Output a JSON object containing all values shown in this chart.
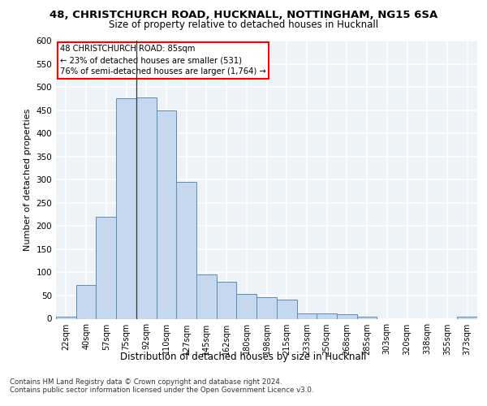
{
  "title_line1": "48, CHRISTCHURCH ROAD, HUCKNALL, NOTTINGHAM, NG15 6SA",
  "title_line2": "Size of property relative to detached houses in Hucknall",
  "xlabel": "Distribution of detached houses by size in Hucknall",
  "ylabel": "Number of detached properties",
  "categories": [
    "22sqm",
    "40sqm",
    "57sqm",
    "75sqm",
    "92sqm",
    "110sqm",
    "127sqm",
    "145sqm",
    "162sqm",
    "180sqm",
    "198sqm",
    "215sqm",
    "233sqm",
    "250sqm",
    "268sqm",
    "285sqm",
    "303sqm",
    "320sqm",
    "338sqm",
    "355sqm",
    "373sqm"
  ],
  "values": [
    5,
    72,
    219,
    475,
    478,
    450,
    295,
    95,
    80,
    53,
    47,
    41,
    12,
    12,
    10,
    5,
    0,
    0,
    0,
    0,
    5
  ],
  "bar_color": "#c5d8f0",
  "bar_edge_color": "#5b8db8",
  "annotation_line1": "48 CHRISTCHURCH ROAD: 85sqm",
  "annotation_line2": "← 23% of detached houses are smaller (531)",
  "annotation_line3": "76% of semi-detached houses are larger (1,764) →",
  "vline_x": 3.5,
  "bg_color": "#eef3f8",
  "grid_color": "#ffffff",
  "footnote1": "Contains HM Land Registry data © Crown copyright and database right 2024.",
  "footnote2": "Contains public sector information licensed under the Open Government Licence v3.0.",
  "ylim": [
    0,
    600
  ],
  "yticks": [
    0,
    50,
    100,
    150,
    200,
    250,
    300,
    350,
    400,
    450,
    500,
    550,
    600
  ]
}
